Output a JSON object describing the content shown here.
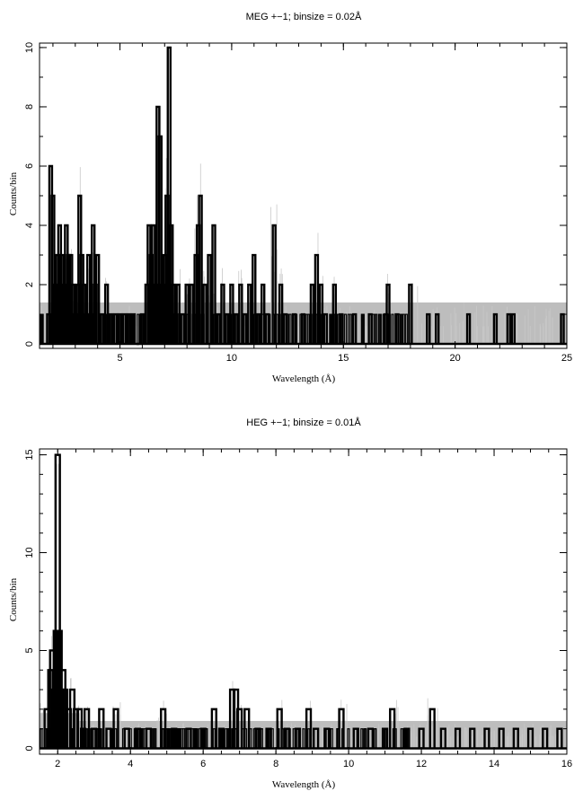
{
  "chart_data": [
    {
      "type": "bar",
      "title": "MEG +−1; binsize = 0.02Å",
      "xlabel": "Wavelength (Å)",
      "ylabel": "Counts/bin",
      "xlim": [
        1.4,
        25
      ],
      "ylim": [
        -0.15,
        10.15
      ],
      "xticks": [
        5,
        10,
        15,
        20,
        25
      ],
      "xtick_labels": [
        "5",
        "10",
        "15",
        "20",
        "25"
      ],
      "yticks": [
        0,
        2,
        4,
        6,
        8,
        10
      ],
      "ytick_labels": [
        "0",
        "2",
        "4",
        "6",
        "8",
        "10"
      ],
      "background_colors": {
        "band": "#bdbdbd",
        "model_lines": "#c8c8c8",
        "data": "#000000"
      },
      "background_band": [
        {
          "x0": 1.4,
          "x1": 20.4,
          "y": 1.4
        },
        {
          "x0": 20.4,
          "x1": 25,
          "y": 1.4
        }
      ],
      "x": [
        1.8,
        1.9,
        2.0,
        2.1,
        2.2,
        2.3,
        2.4,
        2.5,
        2.6,
        2.7,
        2.8,
        2.9,
        3.0,
        3.1,
        3.2,
        3.3,
        3.4,
        3.5,
        3.6,
        3.7,
        3.8,
        3.9,
        4.0,
        4.2,
        4.4,
        4.6,
        4.8,
        5.0,
        5.2,
        5.4,
        5.6,
        5.8,
        6.0,
        6.2,
        6.3,
        6.4,
        6.5,
        6.6,
        6.7,
        6.8,
        6.9,
        7.0,
        7.1,
        7.2,
        7.3,
        7.4,
        7.5,
        7.6,
        7.8,
        8.0,
        8.2,
        8.4,
        8.5,
        8.6,
        8.8,
        9.0,
        9.2,
        9.4,
        9.6,
        9.8,
        10.0,
        10.2,
        10.4,
        10.6,
        10.8,
        11.0,
        11.2,
        11.4,
        11.6,
        11.9,
        12.2,
        12.4,
        12.8,
        13.2,
        13.6,
        13.8,
        14.0,
        14.2,
        14.6,
        14.9,
        15.5,
        16.2,
        16.9,
        17.0,
        17.4,
        18.0,
        18.8,
        19.2,
        20.6,
        21.8,
        22.4,
        22.6,
        24.8
      ],
      "values": [
        1,
        6,
        5,
        2,
        3,
        4,
        3,
        2,
        4,
        3,
        3,
        2,
        1,
        2,
        5,
        3,
        2,
        1,
        3,
        1,
        4,
        2,
        3,
        1,
        2,
        1,
        1,
        1,
        1,
        1,
        1,
        0,
        1,
        2,
        4,
        3,
        4,
        2,
        8,
        7,
        2,
        3,
        5,
        10,
        4,
        2,
        1,
        2,
        1,
        2,
        2,
        3,
        4,
        5,
        2,
        3,
        4,
        1,
        2,
        1,
        2,
        1,
        2,
        1,
        2,
        3,
        1,
        2,
        1,
        4,
        2,
        1,
        1,
        1,
        2,
        3,
        2,
        1,
        2,
        1,
        1,
        1,
        1,
        2,
        1,
        2,
        1,
        1,
        1,
        1,
        1,
        1,
        1
      ]
    },
    {
      "type": "bar",
      "title": "HEG +−1; binsize = 0.01Å",
      "xlabel": "Wavelength (Å)",
      "ylabel": "Counts/bin",
      "xlim": [
        1.5,
        16
      ],
      "ylim": [
        -0.3,
        15.3
      ],
      "xticks": [
        2,
        4,
        6,
        8,
        10,
        12,
        14,
        16
      ],
      "xtick_labels": [
        "2",
        "4",
        "6",
        "8",
        "10",
        "12",
        "14",
        "16"
      ],
      "yticks": [
        0,
        5,
        10,
        15
      ],
      "ytick_labels": [
        "0",
        "5",
        "10",
        "15"
      ],
      "background_colors": {
        "band": "#bdbdbd",
        "model_lines": "#c8c8c8",
        "data": "#000000"
      },
      "background_band": [
        {
          "x0": 1.5,
          "x1": 2.6,
          "y": 1.8
        },
        {
          "x0": 2.6,
          "x1": 16,
          "y": 1.4
        }
      ],
      "x": [
        1.7,
        1.8,
        1.85,
        1.9,
        1.95,
        2.0,
        2.05,
        2.1,
        2.15,
        2.2,
        2.3,
        2.4,
        2.5,
        2.6,
        2.7,
        2.8,
        3.0,
        3.2,
        3.4,
        3.6,
        3.9,
        4.2,
        4.5,
        4.9,
        5.2,
        5.6,
        6.0,
        6.3,
        6.5,
        6.8,
        6.9,
        7.0,
        7.2,
        7.5,
        7.8,
        8.1,
        8.3,
        8.6,
        8.9,
        9.1,
        9.4,
        9.8,
        10.2,
        10.6,
        11.0,
        11.2,
        11.6,
        12.0,
        12.3,
        12.6,
        13.0,
        13.4,
        13.8,
        14.2,
        14.6,
        15.0,
        15.4,
        15.8
      ],
      "values": [
        2,
        4,
        5,
        3,
        6,
        15,
        6,
        3,
        4,
        3,
        2,
        3,
        2,
        2,
        1,
        2,
        1,
        2,
        1,
        2,
        1,
        1,
        1,
        2,
        1,
        1,
        1,
        2,
        1,
        3,
        3,
        2,
        2,
        1,
        1,
        2,
        1,
        1,
        2,
        1,
        1,
        2,
        1,
        1,
        1,
        2,
        1,
        1,
        2,
        1,
        1,
        1,
        1,
        1,
        1,
        1,
        1,
        1
      ]
    }
  ]
}
